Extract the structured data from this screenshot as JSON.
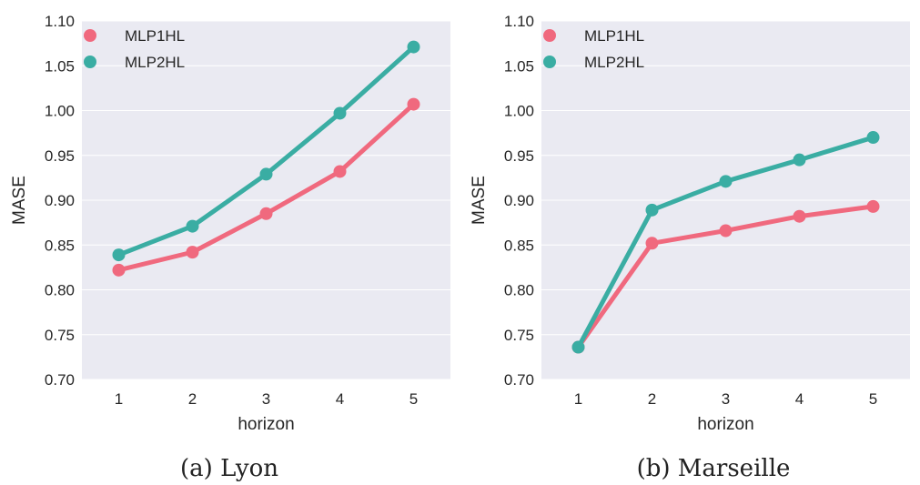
{
  "colors": {
    "background": "#eaeaf2",
    "grid": "#ffffff",
    "series": [
      "#f0697e",
      "#3aada3"
    ]
  },
  "panels": [
    {
      "caption": "(a) Lyon",
      "chart_data": {
        "type": "line",
        "title": "",
        "xlabel": "horizon",
        "ylabel": "MASE",
        "x": [
          1,
          2,
          3,
          4,
          5
        ],
        "xticks": [
          "1",
          "2",
          "3",
          "4",
          "5"
        ],
        "ylim": [
          0.7,
          1.1
        ],
        "yticks": [
          "0.70",
          "0.75",
          "0.80",
          "0.85",
          "0.90",
          "0.95",
          "1.00",
          "1.05",
          "1.10"
        ],
        "grid": true,
        "legend": "top-left",
        "series": [
          {
            "name": "MLP1HL",
            "values": [
              0.822,
              0.842,
              0.885,
              0.932,
              1.007
            ]
          },
          {
            "name": "MLP2HL",
            "values": [
              0.839,
              0.871,
              0.929,
              0.997,
              1.071
            ]
          }
        ]
      }
    },
    {
      "caption": "(b) Marseille",
      "chart_data": {
        "type": "line",
        "title": "",
        "xlabel": "horizon",
        "ylabel": "MASE",
        "x": [
          1,
          2,
          3,
          4,
          5
        ],
        "xticks": [
          "1",
          "2",
          "3",
          "4",
          "5"
        ],
        "ylim": [
          0.7,
          1.1
        ],
        "yticks": [
          "0.70",
          "0.75",
          "0.80",
          "0.85",
          "0.90",
          "0.95",
          "1.00",
          "1.05",
          "1.10"
        ],
        "grid": true,
        "legend": "top-left",
        "series": [
          {
            "name": "MLP1HL",
            "values": [
              0.736,
              0.852,
              0.866,
              0.882,
              0.893
            ]
          },
          {
            "name": "MLP2HL",
            "values": [
              0.736,
              0.889,
              0.921,
              0.945,
              0.97
            ]
          }
        ]
      }
    }
  ]
}
